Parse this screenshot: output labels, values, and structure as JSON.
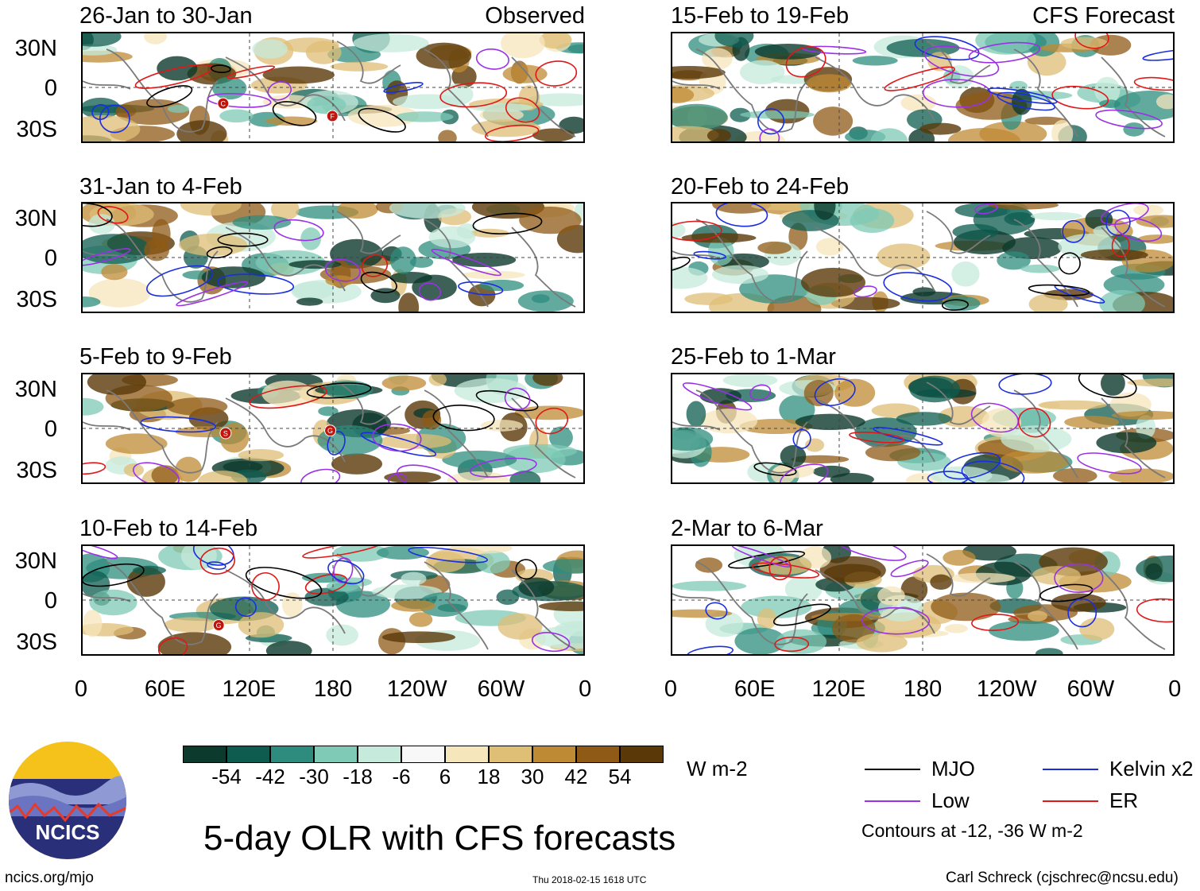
{
  "panels_left": [
    {
      "title": "26-Jan to 30-Jan",
      "tag": "Observed"
    },
    {
      "title": "31-Jan to 4-Feb",
      "tag": ""
    },
    {
      "title": "5-Feb to 9-Feb",
      "tag": ""
    },
    {
      "title": "10-Feb to 14-Feb",
      "tag": ""
    }
  ],
  "panels_right": [
    {
      "title": "15-Feb to 19-Feb",
      "tag": "CFS Forecast"
    },
    {
      "title": "20-Feb to 24-Feb",
      "tag": ""
    },
    {
      "title": "25-Feb to 1-Mar",
      "tag": ""
    },
    {
      "title": "2-Mar to 6-Mar",
      "tag": ""
    }
  ],
  "lat_labels": [
    "30N",
    "0",
    "30S"
  ],
  "lon_labels": [
    "0",
    "60E",
    "120E",
    "180",
    "120W",
    "60W",
    "0"
  ],
  "colorbar": {
    "colors": [
      "#0c3a2c",
      "#0e5c50",
      "#2e8c7e",
      "#7ecab6",
      "#c6eadb",
      "#f8f8f8",
      "#f6e6bc",
      "#dfbe76",
      "#bf8a34",
      "#8f5a16",
      "#5a3808"
    ],
    "ticks": [
      "-54",
      "-42",
      "-30",
      "-18",
      "-6",
      "6",
      "18",
      "30",
      "42",
      "54"
    ],
    "units": "W m-2"
  },
  "legend": {
    "mjo": {
      "label": "MJO",
      "color": "#000000"
    },
    "kelvin": {
      "label": "Kelvin x2",
      "color": "#1a2ee0"
    },
    "low": {
      "label": "Low",
      "color": "#9b30e6"
    },
    "er": {
      "label": "ER",
      "color": "#e01818"
    },
    "contours": "Contours at -12, -36 W m-2"
  },
  "title": "5-day OLR with CFS forecasts",
  "logo_text": "NCICS",
  "footer": {
    "url": "ncics.org/mjo",
    "timestamp": "Thu 2018-02-15 1618 UTC",
    "author": "Carl Schreck (cjschrec@ncsu.edu)"
  },
  "storm_markers": {
    "p0": [
      "C",
      "F"
    ],
    "p2": [
      "S",
      "G"
    ],
    "p3": [
      "G"
    ]
  }
}
